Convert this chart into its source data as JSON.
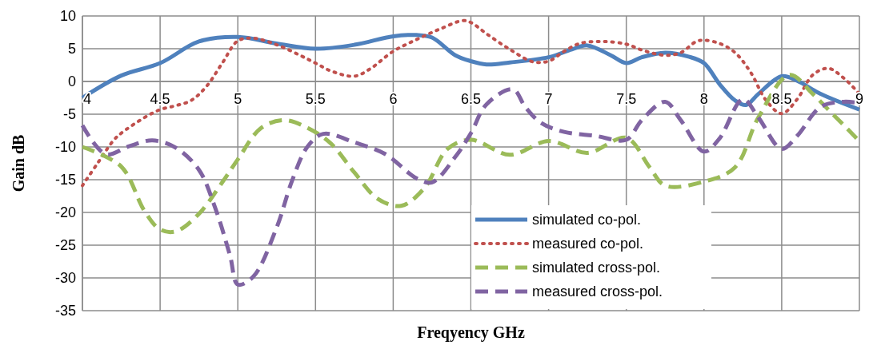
{
  "chart_data": {
    "type": "line",
    "xlabel": "Freqyency GHz",
    "ylabel": "Gain dB",
    "xlim": [
      4,
      9
    ],
    "xticks": [
      4,
      4.5,
      5,
      5.5,
      6,
      6.5,
      7,
      7.5,
      8,
      8.5,
      9
    ],
    "ylim": [
      -35,
      10
    ],
    "yticks": [
      -35,
      -30,
      -25,
      -20,
      -15,
      -10,
      -5,
      0,
      5,
      10
    ],
    "grid": true,
    "legend": "bottom right",
    "series": [
      {
        "name": "simulated co-pol.",
        "color": "#4f81bd",
        "line_style": "solid",
        "x": [
          4,
          4.25,
          4.5,
          4.75,
          5,
          5.25,
          5.5,
          5.75,
          6,
          6.15,
          6.25,
          6.4,
          6.5,
          6.6,
          6.75,
          7,
          7.15,
          7.25,
          7.4,
          7.5,
          7.6,
          7.75,
          7.9,
          8,
          8.1,
          8.2,
          8.27,
          8.35,
          8.5,
          8.6,
          8.75,
          9
        ],
        "values": [
          -2.5,
          0.9,
          2.8,
          6.1,
          6.8,
          5.8,
          5.0,
          5.6,
          6.9,
          7.1,
          6.7,
          4.0,
          3.1,
          2.6,
          2.9,
          3.7,
          4.9,
          5.5,
          4.0,
          2.8,
          3.7,
          4.4,
          3.8,
          2.8,
          -0.4,
          -2.9,
          -3.6,
          -1.9,
          0.8,
          0.1,
          -1.9,
          -4.3
        ]
      },
      {
        "name": "measured co-pol.",
        "color": "#c0504d",
        "line_style": "dotted",
        "x": [
          4,
          4.1,
          4.2,
          4.25,
          4.4,
          4.5,
          4.6,
          4.7,
          4.8,
          4.9,
          5,
          5.1,
          5.25,
          5.4,
          5.5,
          5.6,
          5.75,
          5.85,
          6,
          6.15,
          6.3,
          6.45,
          6.5,
          6.6,
          6.75,
          6.9,
          7,
          7.1,
          7.2,
          7.35,
          7.5,
          7.6,
          7.75,
          7.85,
          7.95,
          8,
          8.1,
          8.2,
          8.3,
          8.4,
          8.5,
          8.6,
          8.7,
          8.8,
          8.9,
          9
        ],
        "values": [
          -15.9,
          -12.4,
          -9.0,
          -7.9,
          -5.5,
          -4.3,
          -3.7,
          -2.9,
          -0.7,
          2.8,
          6.2,
          6.6,
          5.6,
          4.0,
          2.8,
          1.6,
          0.8,
          1.9,
          4.6,
          6.4,
          8.0,
          9.3,
          9.0,
          7.3,
          4.9,
          3.0,
          3.1,
          4.6,
          5.8,
          6.1,
          5.7,
          4.8,
          4.0,
          4.4,
          6.1,
          6.3,
          5.8,
          4.4,
          1.4,
          -2.9,
          -4.9,
          -2.7,
          1.0,
          2.0,
          0.5,
          -1.9
        ]
      },
      {
        "name": "simulated cross-pol.",
        "color": "#9bbb59",
        "line_style": "dashed",
        "x": [
          4,
          4.25,
          4.4,
          4.5,
          4.6,
          4.75,
          4.9,
          5,
          5.15,
          5.3,
          5.45,
          5.6,
          5.75,
          5.9,
          6.05,
          6.2,
          6.35,
          6.5,
          6.75,
          7,
          7.25,
          7.5,
          7.65,
          7.75,
          8,
          8.2,
          8.35,
          8.55,
          8.7,
          8.8,
          9
        ],
        "values": [
          -10.0,
          -13.0,
          -19.8,
          -22.6,
          -22.9,
          -20.2,
          -15.4,
          -11.9,
          -7.1,
          -5.9,
          -7.1,
          -9.5,
          -13.9,
          -17.9,
          -19.0,
          -16.3,
          -10.3,
          -8.9,
          -11.2,
          -9.1,
          -10.9,
          -8.6,
          -13.1,
          -15.9,
          -15.3,
          -13.1,
          -5.5,
          1.0,
          -1.9,
          -4.3,
          -9.1
        ]
      },
      {
        "name": "measured cross-pol.",
        "color": "#8064a2",
        "line_style": "dashed",
        "x": [
          4,
          4.15,
          4.3,
          4.45,
          4.6,
          4.75,
          4.85,
          4.95,
          5,
          5.1,
          5.25,
          5.35,
          5.45,
          5.55,
          5.75,
          5.95,
          6.15,
          6.25,
          6.4,
          6.5,
          6.6,
          6.77,
          6.85,
          6.95,
          7.1,
          7.3,
          7.5,
          7.6,
          7.75,
          7.85,
          8,
          8.1,
          8.25,
          8.35,
          8.5,
          8.6,
          8.75,
          8.9,
          9
        ],
        "values": [
          -6.7,
          -11.1,
          -9.9,
          -9.0,
          -10.1,
          -13.5,
          -19.0,
          -26.6,
          -31.0,
          -29.8,
          -22.3,
          -15.1,
          -9.9,
          -8.0,
          -9.3,
          -11.1,
          -14.8,
          -15.4,
          -11.5,
          -7.9,
          -3.5,
          -1.2,
          -3.9,
          -6.3,
          -7.7,
          -8.3,
          -8.9,
          -5.9,
          -3.1,
          -5.9,
          -10.7,
          -8.7,
          -2.7,
          -5.5,
          -10.3,
          -8.3,
          -3.9,
          -3.1,
          -3.3
        ]
      }
    ]
  }
}
